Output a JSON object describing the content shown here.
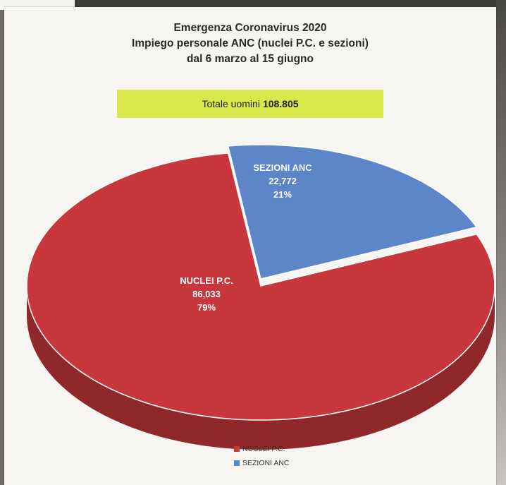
{
  "chart_data": {
    "type": "pie",
    "title_lines": [
      "Emergenza Coronavirus 2020",
      "Impiego personale ANC (nuclei P.C. e sezioni)",
      "dal 6 marzo al 15 giugno"
    ],
    "total": {
      "label": "Totale uomini",
      "value": "108.805"
    },
    "slices": [
      {
        "name": "NUCLEI P.C.",
        "value": 86033,
        "value_label": "86,033",
        "percent": "79%",
        "color": "#c8373c"
      },
      {
        "name": "SEZIONI ANC",
        "value": 22772,
        "value_label": "22,772",
        "percent": "21%",
        "color": "#5d86c9"
      }
    ],
    "legend": [
      "NUCLEI P.C.",
      "SEZIONI ANC"
    ],
    "legend_position": "bottom"
  }
}
